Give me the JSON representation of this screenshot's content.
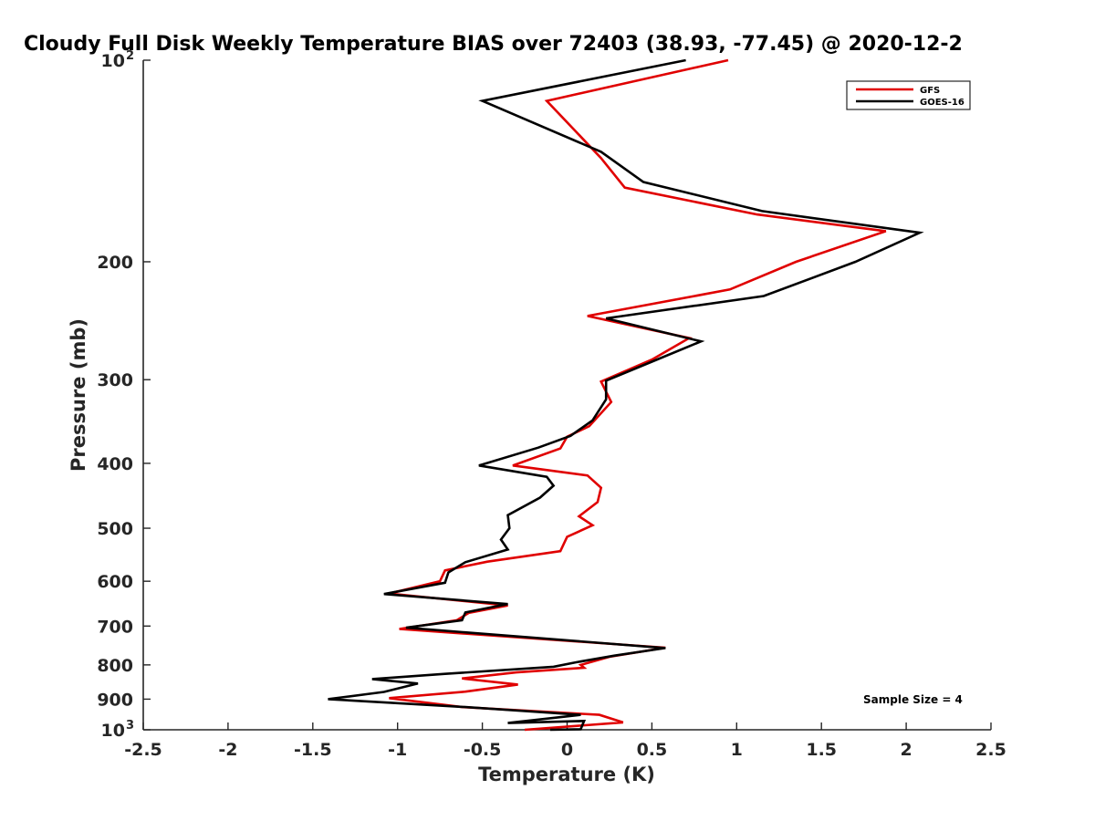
{
  "chart_data": {
    "type": "line",
    "title": "Cloudy Full Disk Weekly Temperature BIAS over 72403 (38.93, -77.45) @ 2020-12-2",
    "xlabel": "Temperature (K)",
    "ylabel": "Pressure (mb)",
    "xlim": [
      -2.5,
      2.5
    ],
    "ylim": [
      100,
      1000
    ],
    "y_scale": "log",
    "y_reversed": true,
    "grid": false,
    "legend_position": "top-right",
    "x_ticks": [
      "-2.5",
      "-2",
      "-1.5",
      "-1",
      "-0.5",
      "0",
      "0.5",
      "1",
      "1.5",
      "2",
      "2.5"
    ],
    "x_tick_values": [
      -2.5,
      -2,
      -1.5,
      -1,
      -0.5,
      0,
      0.5,
      1,
      1.5,
      2,
      2.5
    ],
    "y_ticks": [
      {
        "value": 100,
        "label": "10",
        "exp": "2"
      },
      {
        "value": 200,
        "label": "200"
      },
      {
        "value": 300,
        "label": "300"
      },
      {
        "value": 400,
        "label": "400"
      },
      {
        "value": 500,
        "label": "500"
      },
      {
        "value": 600,
        "label": "600"
      },
      {
        "value": 700,
        "label": "700"
      },
      {
        "value": 800,
        "label": "800"
      },
      {
        "value": 900,
        "label": "900"
      },
      {
        "value": 1000,
        "label": "10",
        "exp": "3"
      }
    ],
    "annotation": "Sample Size = 4",
    "series": [
      {
        "name": "GFS",
        "color": "#e00000",
        "points": [
          [
            0.95,
            100
          ],
          [
            -0.12,
            115
          ],
          [
            0.2,
            140
          ],
          [
            0.34,
            155
          ],
          [
            1.12,
            170
          ],
          [
            1.88,
            180
          ],
          [
            1.35,
            200
          ],
          [
            0.96,
            220
          ],
          [
            0.12,
            241
          ],
          [
            0.72,
            260
          ],
          [
            0.5,
            280
          ],
          [
            0.2,
            302
          ],
          [
            0.26,
            324
          ],
          [
            0.13,
            352
          ],
          [
            0.0,
            365
          ],
          [
            -0.04,
            380
          ],
          [
            -0.32,
            403
          ],
          [
            0.12,
            417
          ],
          [
            0.2,
            435
          ],
          [
            0.18,
            457
          ],
          [
            0.07,
            480
          ],
          [
            0.15,
            495
          ],
          [
            0.0,
            515
          ],
          [
            -0.04,
            541
          ],
          [
            -0.47,
            561
          ],
          [
            -0.72,
            578
          ],
          [
            -0.75,
            600
          ],
          [
            -1.05,
            626
          ],
          [
            -0.35,
            652
          ],
          [
            -0.58,
            669
          ],
          [
            -0.65,
            686
          ],
          [
            -0.99,
            707
          ],
          [
            0.58,
            754
          ],
          [
            0.25,
            778
          ],
          [
            0.08,
            800
          ],
          [
            0.1,
            808
          ],
          [
            -0.3,
            821
          ],
          [
            -0.62,
            838
          ],
          [
            -0.29,
            856
          ],
          [
            -0.6,
            877
          ],
          [
            -1.05,
            897
          ],
          [
            -0.62,
            925
          ],
          [
            0.19,
            950
          ],
          [
            0.33,
            975
          ],
          [
            -0.25,
            1000
          ]
        ]
      },
      {
        "name": "GOES-16",
        "color": "#000000",
        "points": [
          [
            0.7,
            100
          ],
          [
            -0.5,
            115
          ],
          [
            0.2,
            137
          ],
          [
            0.45,
            152
          ],
          [
            1.15,
            168
          ],
          [
            2.08,
            181
          ],
          [
            1.7,
            200
          ],
          [
            1.16,
            225
          ],
          [
            0.23,
            243
          ],
          [
            0.79,
            263
          ],
          [
            0.5,
            282
          ],
          [
            0.23,
            301
          ],
          [
            0.23,
            321
          ],
          [
            0.15,
            345
          ],
          [
            0.02,
            364
          ],
          [
            -0.17,
            379
          ],
          [
            -0.52,
            403
          ],
          [
            -0.12,
            419
          ],
          [
            -0.08,
            432
          ],
          [
            -0.16,
            450
          ],
          [
            -0.35,
            478
          ],
          [
            -0.34,
            500
          ],
          [
            -0.39,
            520
          ],
          [
            -0.35,
            538
          ],
          [
            -0.6,
            562
          ],
          [
            -0.7,
            582
          ],
          [
            -0.72,
            603
          ],
          [
            -1.08,
            627
          ],
          [
            -0.35,
            649
          ],
          [
            -0.6,
            668
          ],
          [
            -0.62,
            686
          ],
          [
            -0.95,
            704
          ],
          [
            0.58,
            755
          ],
          [
            0.28,
            775
          ],
          [
            0.05,
            793
          ],
          [
            -0.08,
            805
          ],
          [
            -0.72,
            825
          ],
          [
            -1.15,
            840
          ],
          [
            -0.88,
            853
          ],
          [
            -1.08,
            878
          ],
          [
            -1.41,
            900
          ],
          [
            -0.6,
            925
          ],
          [
            0.08,
            950
          ],
          [
            -0.35,
            977
          ],
          [
            0.1,
            970
          ],
          [
            0.08,
            998
          ],
          [
            -0.1,
            1000
          ]
        ]
      }
    ]
  }
}
